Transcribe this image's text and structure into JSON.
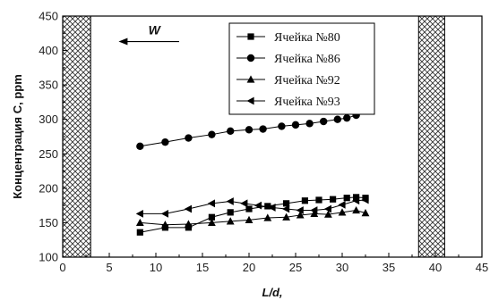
{
  "chart_data": {
    "type": "line",
    "title": "",
    "xlabel": "L/d,",
    "ylabel": "Концентрация C, ppm",
    "xlim": [
      0,
      45
    ],
    "ylim": [
      100,
      450
    ],
    "x_ticks": [
      0,
      5,
      10,
      15,
      20,
      25,
      30,
      35,
      40,
      45
    ],
    "y_ticks": [
      100,
      150,
      200,
      250,
      300,
      350,
      400,
      450
    ],
    "x_tick_labels": [
      "0",
      "5",
      "10",
      "15",
      "20",
      "25",
      "30",
      "35",
      "40",
      "45"
    ],
    "y_tick_labels": [
      "100",
      "150",
      "200",
      "250",
      "300",
      "350",
      "400",
      "450"
    ],
    "grid": false,
    "legend_position": "top-center",
    "hatched_bands": [
      [
        0,
        3
      ],
      [
        38.2,
        41
      ]
    ],
    "annotation": {
      "text": "W",
      "arrow_from_x": 12.5,
      "arrow_to_x": 6,
      "y": 413
    },
    "series": [
      {
        "name": "Ячейка №80",
        "marker": "square",
        "x": [
          8.3,
          11,
          13.5,
          16,
          18,
          20,
          22,
          24,
          26,
          27.5,
          29,
          30.5,
          31.5,
          32.5
        ],
        "y": [
          136,
          143,
          143,
          158,
          165,
          170,
          174,
          178,
          182,
          183,
          184,
          186,
          187,
          186
        ]
      },
      {
        "name": "Ячейка №86",
        "marker": "circle",
        "x": [
          8.3,
          11,
          13.5,
          16,
          18,
          20,
          21.5,
          23.5,
          25,
          26.5,
          28,
          29.5,
          30.5,
          31.5,
          32.5
        ],
        "y": [
          261,
          267,
          273,
          278,
          283,
          285,
          286,
          290,
          292,
          294,
          297,
          300,
          302,
          306,
          315
        ]
      },
      {
        "name": "Ячейка №92",
        "marker": "triangle-up",
        "x": [
          8.3,
          11,
          13.5,
          16,
          18,
          20,
          22,
          24,
          25.5,
          27,
          28.5,
          30,
          31.5,
          32.5
        ],
        "y": [
          150,
          147,
          148,
          150,
          152,
          154,
          157,
          158,
          161,
          163,
          162,
          165,
          168,
          164
        ]
      },
      {
        "name": "Ячейка №93",
        "marker": "triangle-left",
        "x": [
          8.3,
          11,
          13.5,
          16,
          18,
          19.5,
          21,
          22.5,
          24,
          25.5,
          27,
          28.5,
          30,
          31.5,
          32.5
        ],
        "y": [
          163,
          163,
          170,
          178,
          181,
          178,
          175,
          172,
          170,
          168,
          168,
          170,
          176,
          182,
          183
        ]
      }
    ]
  }
}
